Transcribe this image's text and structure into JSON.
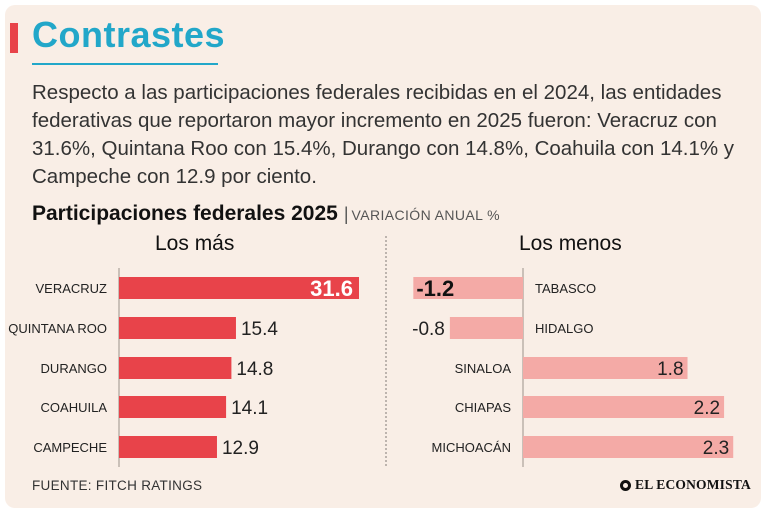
{
  "header": {
    "title": "Contrastes",
    "intro": "Respecto a las participaciones federales recibidas en el 2024, las entidades federativas que reportaron mayor incremento en 2025 fueron: Veracruz con 31.6%, Quintana Roo con 15.4%, Durango con 14.8%, Coahuila con 14.1% y Campeche con 12.9 por ciento."
  },
  "chart_header": {
    "title": "Participaciones federales 2025",
    "separator": "|",
    "subtitle": "VARIACIÓN ANUAL %"
  },
  "chart_data": [
    {
      "type": "bar",
      "orientation": "horizontal",
      "title": "Los más",
      "categories": [
        "VERACRUZ",
        "QUINTANA ROO",
        "DURANGO",
        "COAHUILA",
        "CAMPECHE"
      ],
      "values": [
        31.6,
        15.4,
        14.8,
        14.1,
        12.9
      ],
      "value_labels": [
        "31.6",
        "15.4",
        "14.8",
        "14.1",
        "12.9"
      ],
      "highlight_index": 0,
      "xlim": [
        0,
        31.6
      ],
      "colors": {
        "bar": "#e8434a",
        "highlight_text": "#ffffff",
        "text": "#222222"
      }
    },
    {
      "type": "bar",
      "orientation": "horizontal",
      "title": "Los menos",
      "categories": [
        "TABASCO",
        "HIDALGO",
        "SINALOA",
        "CHIAPAS",
        "MICHOACÁN"
      ],
      "values": [
        -1.2,
        -0.8,
        1.8,
        2.2,
        2.3
      ],
      "value_labels": [
        "-1.2",
        "-0.8",
        "1.8",
        "2.2",
        "2.3"
      ],
      "highlight_index": 0,
      "xlim": [
        -1.2,
        2.3
      ],
      "colors": {
        "bar": "#f4aaa6",
        "text": "#222222"
      }
    }
  ],
  "footer": {
    "source": "FUENTE: FITCH RATINGS",
    "brand": "EL ECONOMISTA"
  }
}
